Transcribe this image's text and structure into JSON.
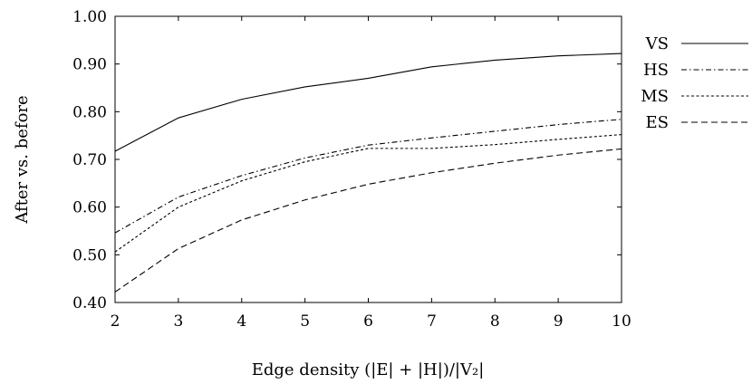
{
  "chart_data": {
    "type": "line",
    "xlabel": "Edge density (|E| + |H|)/|V₂|",
    "ylabel": "After vs. before",
    "xlim": [
      2,
      10
    ],
    "ylim": [
      0.4,
      1.0
    ],
    "x_ticks": [
      "2",
      "3",
      "4",
      "5",
      "6",
      "7",
      "8",
      "9",
      "10"
    ],
    "y_ticks": [
      "0.40",
      "0.50",
      "0.60",
      "0.70",
      "0.80",
      "0.90",
      "1.00"
    ],
    "x": [
      2,
      3,
      4,
      5,
      6,
      7,
      8,
      9,
      10
    ],
    "grid": false,
    "legend_position": "right",
    "series": [
      {
        "name": "VS",
        "style": "solid",
        "values": [
          0.717,
          0.787,
          0.826,
          0.852,
          0.87,
          0.894,
          0.908,
          0.917,
          0.922
        ]
      },
      {
        "name": "HS",
        "style": "dashdot",
        "values": [
          0.546,
          0.621,
          0.666,
          0.703,
          0.73,
          0.745,
          0.759,
          0.773,
          0.784
        ]
      },
      {
        "name": "MS",
        "style": "dotted",
        "values": [
          0.506,
          0.6,
          0.655,
          0.695,
          0.723,
          0.723,
          0.731,
          0.742,
          0.752
        ]
      },
      {
        "name": "ES",
        "style": "dashed",
        "values": [
          0.422,
          0.513,
          0.573,
          0.615,
          0.648,
          0.672,
          0.692,
          0.709,
          0.722
        ]
      }
    ]
  }
}
